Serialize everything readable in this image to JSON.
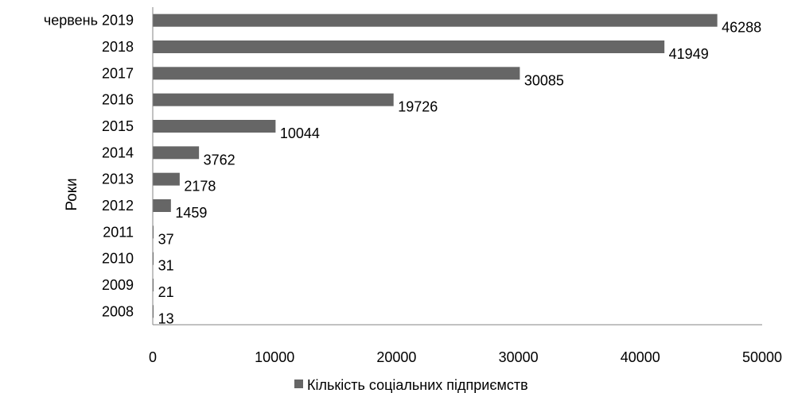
{
  "chart_data": {
    "type": "bar",
    "orientation": "horizontal",
    "ylabel": "Роки",
    "xlabel": "",
    "xlim": [
      0,
      50000
    ],
    "x_ticks": [
      0,
      10000,
      20000,
      30000,
      40000,
      50000
    ],
    "categories": [
      "2008",
      "2009",
      "2010",
      "2011",
      "2012",
      "2013",
      "2014",
      "2015",
      "2016",
      "2017",
      "2018",
      "червень 2019"
    ],
    "series": [
      {
        "name": "Кількість соціальних підприємств",
        "values": [
          13,
          21,
          31,
          37,
          1459,
          2178,
          3762,
          10044,
          19726,
          30085,
          41949,
          46288
        ],
        "color": "#666666"
      }
    ],
    "grid": false,
    "legend_position": "bottom"
  }
}
